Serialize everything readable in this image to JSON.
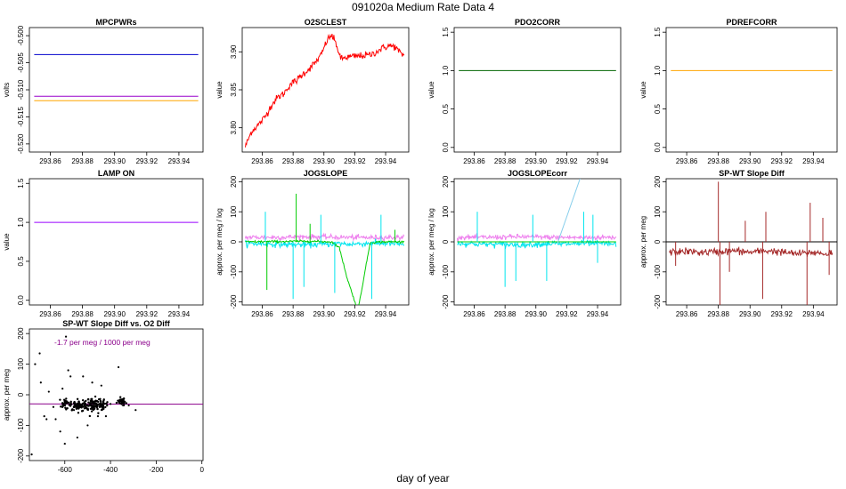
{
  "figure": {
    "title": "091020a   Medium Rate Data 4",
    "footer": "day of year"
  },
  "chart_data": [
    {
      "type": "line",
      "title": "MPCPWRs",
      "ylabel": "volts",
      "xlim": [
        293.847,
        293.955
      ],
      "ylim": [
        -0.5215,
        -0.4985
      ],
      "xticks": [
        "293.86",
        "293.88",
        "293.90",
        "293.92",
        "293.94"
      ],
      "yticks": [
        "-0.520",
        "-0.515",
        "-0.510",
        "-0.505",
        "-0.500"
      ],
      "series": [
        {
          "color": "#0000cc",
          "x": [
            293.85,
            293.952
          ],
          "y": [
            -0.5035,
            -0.5035
          ]
        },
        {
          "color": "#9900cc",
          "x": [
            293.85,
            293.952
          ],
          "y": [
            -0.5112,
            -0.5112
          ]
        },
        {
          "color": "#ffa500",
          "x": [
            293.85,
            293.952
          ],
          "y": [
            -0.512,
            -0.512
          ]
        }
      ]
    },
    {
      "type": "line",
      "title": "O2SCLEST",
      "ylabel": "value",
      "xlim": [
        293.847,
        293.955
      ],
      "ylim": [
        3.768,
        3.932
      ],
      "xticks": [
        "293.86",
        "293.88",
        "293.90",
        "293.92",
        "293.94"
      ],
      "yticks": [
        "3.80",
        "3.85",
        "3.90"
      ],
      "series": [
        {
          "color": "#ff0000",
          "x": [
            293.849,
            293.853,
            293.858,
            293.862,
            293.866,
            293.87,
            293.874,
            293.878,
            293.882,
            293.886,
            293.89,
            293.894,
            293.898,
            293.902,
            293.905,
            293.908,
            293.911,
            293.913,
            293.915,
            293.93,
            293.934,
            293.938,
            293.942,
            293.946,
            293.95,
            293.952
          ],
          "y": [
            3.775,
            3.795,
            3.805,
            3.815,
            3.83,
            3.84,
            3.845,
            3.857,
            3.862,
            3.87,
            3.877,
            3.885,
            3.895,
            3.915,
            3.922,
            3.91,
            3.89,
            3.892,
            3.893,
            3.896,
            3.9,
            3.905,
            3.908,
            3.907,
            3.897,
            3.896
          ],
          "noise": 0.004
        }
      ]
    },
    {
      "type": "line",
      "title": "PDO2CORR",
      "ylabel": "value",
      "xlim": [
        293.847,
        293.955
      ],
      "ylim": [
        -0.06,
        1.56
      ],
      "xticks": [
        "293.86",
        "293.88",
        "293.90",
        "293.92",
        "293.94"
      ],
      "yticks": [
        "0.0",
        "0.5",
        "1.0",
        "1.5"
      ],
      "series": [
        {
          "color": "#006400",
          "x": [
            293.85,
            293.952
          ],
          "y": [
            1.0,
            1.0
          ]
        }
      ]
    },
    {
      "type": "line",
      "title": "PDREFCORR",
      "ylabel": "value",
      "xlim": [
        293.847,
        293.955
      ],
      "ylim": [
        -0.06,
        1.56
      ],
      "xticks": [
        "293.86",
        "293.88",
        "293.90",
        "293.92",
        "293.94"
      ],
      "yticks": [
        "0.0",
        "0.5",
        "1.0",
        "1.5"
      ],
      "series": [
        {
          "color": "#ffa500",
          "x": [
            293.85,
            293.952
          ],
          "y": [
            1.0,
            1.0
          ]
        }
      ]
    },
    {
      "type": "line",
      "title": "LAMP ON",
      "ylabel": "value",
      "xlim": [
        293.847,
        293.955
      ],
      "ylim": [
        -0.06,
        1.56
      ],
      "xticks": [
        "293.86",
        "293.88",
        "293.90",
        "293.92",
        "293.94"
      ],
      "yticks": [
        "0.0",
        "0.5",
        "1.0",
        "1.5"
      ],
      "series": [
        {
          "color": "#9900ff",
          "x": [
            293.85,
            293.952
          ],
          "y": [
            1.0,
            1.0
          ]
        }
      ]
    },
    {
      "type": "line",
      "title": "JOGSLOPE",
      "ylabel": "approx. per meg / log",
      "xlim": [
        293.847,
        293.955
      ],
      "ylim": [
        -210,
        210
      ],
      "xticks": [
        "293.86",
        "293.88",
        "293.90",
        "293.92",
        "293.94"
      ],
      "yticks": [
        "-200",
        "-100",
        "0",
        "100",
        "200"
      ],
      "series": [
        {
          "color": "#ee82ee",
          "x": [
            293.849,
            293.87,
            293.89,
            293.912,
            293.914,
            293.93,
            293.94,
            293.952
          ],
          "y": [
            15,
            15,
            17,
            15,
            15,
            14,
            15,
            15
          ],
          "noise": 7
        },
        {
          "color": "#00e5ee",
          "x": [
            293.849,
            293.87,
            293.89,
            293.912,
            293.914,
            293.93,
            293.94,
            293.952
          ],
          "y": [
            -5,
            -8,
            -10,
            -5,
            -8,
            -5,
            -5,
            -8
          ],
          "noise": 8
        },
        {
          "color": "#00cc00",
          "x": [
            293.849,
            293.87,
            293.89,
            293.905,
            293.91,
            293.915,
            293.922,
            293.93,
            293.94,
            293.952
          ],
          "y": [
            0,
            1,
            2,
            0,
            -20,
            -120,
            -230,
            -2,
            0,
            0
          ],
          "noise": 3
        }
      ],
      "spikes": [
        {
          "color": "#00e5ee",
          "x": 293.862,
          "y": 100
        },
        {
          "color": "#00cc00",
          "x": 293.863,
          "y": -160
        },
        {
          "color": "#00e5ee",
          "x": 293.88,
          "y": -190
        },
        {
          "color": "#00cc00",
          "x": 293.882,
          "y": 160
        },
        {
          "color": "#00e5ee",
          "x": 293.887,
          "y": -150
        },
        {
          "color": "#00cc00",
          "x": 293.891,
          "y": 60
        },
        {
          "color": "#00e5ee",
          "x": 293.898,
          "y": 90
        },
        {
          "color": "#00e5ee",
          "x": 293.907,
          "y": -170
        },
        {
          "color": "#00e5ee",
          "x": 293.931,
          "y": -190
        },
        {
          "color": "#00e5ee",
          "x": 293.937,
          "y": 90
        },
        {
          "color": "#00cc00",
          "x": 293.946,
          "y": 40
        }
      ]
    },
    {
      "type": "line",
      "title": "JOGSLOPEcorr",
      "ylabel": "approx. per meg / log",
      "xlim": [
        293.847,
        293.955
      ],
      "ylim": [
        -210,
        210
      ],
      "xticks": [
        "293.86",
        "293.88",
        "293.90",
        "293.92",
        "293.94"
      ],
      "yticks": [
        "-200",
        "-100",
        "0",
        "100",
        "200"
      ],
      "series": [
        {
          "color": "#ee82ee",
          "x": [
            293.849,
            293.87,
            293.89,
            293.912,
            293.914,
            293.93,
            293.94,
            293.952
          ],
          "y": [
            15,
            15,
            17,
            15,
            15,
            14,
            15,
            15
          ],
          "noise": 7
        },
        {
          "color": "#00e5ee",
          "x": [
            293.849,
            293.87,
            293.89,
            293.912,
            293.914,
            293.93,
            293.94,
            293.952
          ],
          "y": [
            -5,
            -8,
            -10,
            -5,
            -8,
            -5,
            -5,
            -8
          ],
          "noise": 8
        },
        {
          "color": "#00cc00",
          "x": [
            293.849,
            293.952
          ],
          "y": [
            0,
            0
          ]
        },
        {
          "color": "#87ceeb",
          "x": [
            293.914,
            293.93
          ],
          "y": [
            -5,
            230
          ]
        }
      ],
      "spikes": [
        {
          "color": "#00e5ee",
          "x": 293.862,
          "y": 100
        },
        {
          "color": "#00e5ee",
          "x": 293.88,
          "y": -150
        },
        {
          "color": "#00e5ee",
          "x": 293.887,
          "y": -130
        },
        {
          "color": "#00e5ee",
          "x": 293.898,
          "y": 90
        },
        {
          "color": "#00e5ee",
          "x": 293.907,
          "y": -130
        },
        {
          "color": "#00e5ee",
          "x": 293.931,
          "y": 100
        },
        {
          "color": "#00e5ee",
          "x": 293.937,
          "y": 90
        },
        {
          "color": "#00e5ee",
          "x": 293.94,
          "y": -70
        }
      ]
    },
    {
      "type": "line",
      "title": "SP-WT Slope Diff",
      "ylabel": "approx. per meg",
      "xlim": [
        293.847,
        293.955
      ],
      "ylim": [
        -210,
        210
      ],
      "xticks": [
        "293.86",
        "293.88",
        "293.90",
        "293.92",
        "293.94"
      ],
      "yticks": [
        "-200",
        "-100",
        "0",
        "100",
        "200"
      ],
      "hline": {
        "color": "#000000",
        "y": 0
      },
      "series": [
        {
          "color": "#a52a2a",
          "x": [
            293.849,
            293.86,
            293.87,
            293.88,
            293.89,
            293.9,
            293.91,
            293.913,
            293.93,
            293.94,
            293.948,
            293.952
          ],
          "y": [
            -35,
            -32,
            -35,
            -33,
            -30,
            -35,
            -30,
            -30,
            -40,
            -35,
            -40,
            -35
          ],
          "noise": 10
        }
      ],
      "spikes": [
        {
          "color": "#a52a2a",
          "x": 293.853,
          "y": -80
        },
        {
          "color": "#a52a2a",
          "x": 293.88,
          "y": 200
        },
        {
          "color": "#a52a2a",
          "x": 293.881,
          "y": -210
        },
        {
          "color": "#a52a2a",
          "x": 293.887,
          "y": -100
        },
        {
          "color": "#a52a2a",
          "x": 293.897,
          "y": 70
        },
        {
          "color": "#a52a2a",
          "x": 293.908,
          "y": -190
        },
        {
          "color": "#a52a2a",
          "x": 293.91,
          "y": 100
        },
        {
          "color": "#a52a2a",
          "x": 293.936,
          "y": -210
        },
        {
          "color": "#a52a2a",
          "x": 293.938,
          "y": 130
        },
        {
          "color": "#a52a2a",
          "x": 293.946,
          "y": 80
        },
        {
          "color": "#a52a2a",
          "x": 293.95,
          "y": -110
        }
      ]
    },
    {
      "type": "scatter",
      "title": "SP-WT Slope Diff vs. O2 Diff",
      "ylabel": "approx. per meg",
      "xlim": [
        -755,
        5
      ],
      "ylim": [
        -215,
        215
      ],
      "xticks": [
        "-600",
        "-400",
        "-200",
        "0"
      ],
      "yticks": [
        "-200",
        "-100",
        "0",
        "100",
        "200"
      ],
      "annotation": "-1.7 per meg / 1000 per meg",
      "annotation_color": "#8b008b",
      "fit": {
        "color": "#8b008b",
        "slope": -0.0017,
        "intercept": -31
      },
      "clusters": [
        {
          "cx": -600,
          "cy": -30,
          "sx": 8,
          "sy": 8,
          "n": 25
        },
        {
          "cx": -545,
          "cy": -35,
          "sx": 15,
          "sy": 8,
          "n": 60
        },
        {
          "cx": -470,
          "cy": -32,
          "sx": 25,
          "sy": 10,
          "n": 120
        },
        {
          "cx": -350,
          "cy": -20,
          "sx": 8,
          "sy": 6,
          "n": 30
        }
      ],
      "outliers": [
        [
          -745,
          -195
        ],
        [
          -730,
          100
        ],
        [
          -710,
          135
        ],
        [
          -705,
          40
        ],
        [
          -690,
          -70
        ],
        [
          -680,
          -80
        ],
        [
          -640,
          -80
        ],
        [
          -620,
          -120
        ],
        [
          -600,
          -160
        ],
        [
          -595,
          190
        ],
        [
          -585,
          80
        ],
        [
          -575,
          60
        ],
        [
          -560,
          -50
        ],
        [
          -545,
          -140
        ],
        [
          -520,
          60
        ],
        [
          -500,
          -100
        ],
        [
          -480,
          40
        ],
        [
          -455,
          -70
        ],
        [
          -440,
          30
        ],
        [
          -420,
          -70
        ],
        [
          -400,
          -30
        ],
        [
          -365,
          90
        ],
        [
          -345,
          -35
        ],
        [
          -320,
          -35
        ],
        [
          -290,
          -50
        ],
        [
          -670,
          10
        ],
        [
          -650,
          -40
        ],
        [
          -610,
          20
        ]
      ]
    }
  ]
}
